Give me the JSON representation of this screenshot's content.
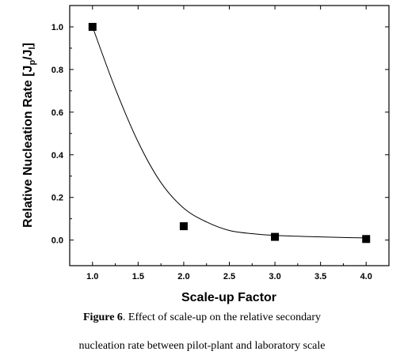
{
  "chart_data": {
    "type": "scatter",
    "xlabel": "Scale-up Factor",
    "ylabel_main": "Relative Nucleation Rate [J",
    "ylabel_sub1": "p",
    "ylabel_mid": "/J",
    "ylabel_sub2": "l",
    "ylabel_end": "]",
    "xlim": [
      0.75,
      4.25
    ],
    "ylim": [
      -0.12,
      1.1
    ],
    "x_ticks": [
      "1.0",
      "1.5",
      "2.0",
      "2.5",
      "3.0",
      "3.5",
      "4.0"
    ],
    "y_ticks": [
      "0.0",
      "0.2",
      "0.4",
      "0.6",
      "0.8",
      "1.0"
    ],
    "series": [
      {
        "points": [
          {
            "x": 1.0,
            "y": 1.0
          },
          {
            "x": 2.0,
            "y": 0.065
          },
          {
            "x": 3.0,
            "y": 0.015
          },
          {
            "x": 4.0,
            "y": 0.005
          }
        ],
        "marker": "square",
        "color": "#000000"
      }
    ],
    "fit_curve": {
      "x": [
        1.0,
        1.25,
        1.5,
        1.75,
        2.0,
        2.25,
        2.5,
        2.75,
        3.0,
        3.25,
        3.5,
        3.75,
        4.0
      ],
      "y": [
        1.0,
        0.71,
        0.46,
        0.27,
        0.15,
        0.085,
        0.045,
        0.03,
        0.022,
        0.018,
        0.015,
        0.012,
        0.01
      ],
      "color": "#000000"
    },
    "grid": false
  },
  "caption": {
    "label": "Figure 6",
    "line1": ". Effect of scale-up on the relative secondary",
    "line2": "nucleation rate between pilot-plant and laboratory scale"
  }
}
